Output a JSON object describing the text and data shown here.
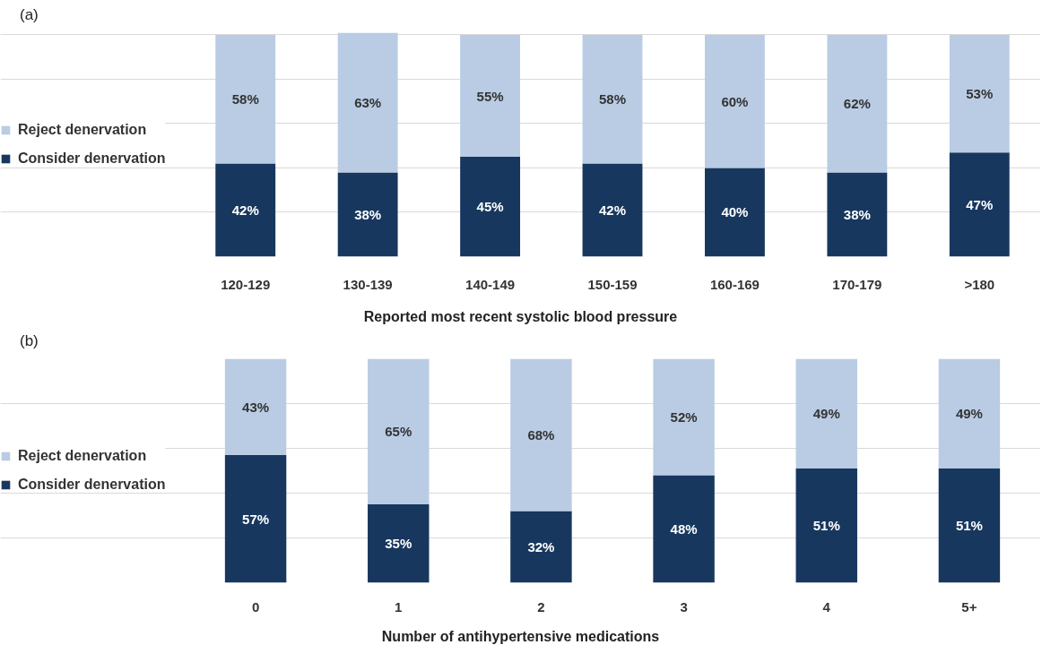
{
  "chart_data": [
    {
      "type": "bar",
      "stacked": true,
      "legend": "left",
      "grid": "y",
      "annotations": [
        "(a)"
      ],
      "xlabel": "Reported most recent systolic blood pressure",
      "categories": [
        "120-129",
        "130-139",
        "140-149",
        "150-159",
        "160-169",
        "170-179",
        ">180"
      ],
      "series": [
        {
          "name": "Consider denervation",
          "color": "#17375e",
          "values": [
            42,
            38,
            45,
            42,
            40,
            38,
            47
          ],
          "value_labels": [
            "42%",
            "38%",
            "45%",
            "42%",
            "40%",
            "38%",
            "47%"
          ]
        },
        {
          "name": "Reject denervation",
          "color": "#b9cce4",
          "values": [
            58,
            63,
            55,
            58,
            60,
            62,
            53
          ],
          "value_labels": [
            "58%",
            "63%",
            "55%",
            "58%",
            "60%",
            "62%",
            "53%"
          ]
        }
      ]
    },
    {
      "type": "bar",
      "stacked": true,
      "legend": "left",
      "grid": "y",
      "annotations": [
        "(b)"
      ],
      "xlabel": "Number of antihypertensive medications",
      "categories": [
        "0",
        "1",
        "2",
        "3",
        "4",
        "5+"
      ],
      "series": [
        {
          "name": "Consider denervation",
          "color": "#17375e",
          "values": [
            57,
            35,
            32,
            48,
            51,
            51
          ],
          "value_labels": [
            "57%",
            "35%",
            "32%",
            "48%",
            "51%",
            "51%"
          ]
        },
        {
          "name": "Reject denervation",
          "color": "#b9cce4",
          "values": [
            43,
            65,
            68,
            52,
            49,
            49
          ],
          "value_labels": [
            "43%",
            "65%",
            "68%",
            "52%",
            "49%",
            "49%"
          ]
        }
      ]
    }
  ]
}
